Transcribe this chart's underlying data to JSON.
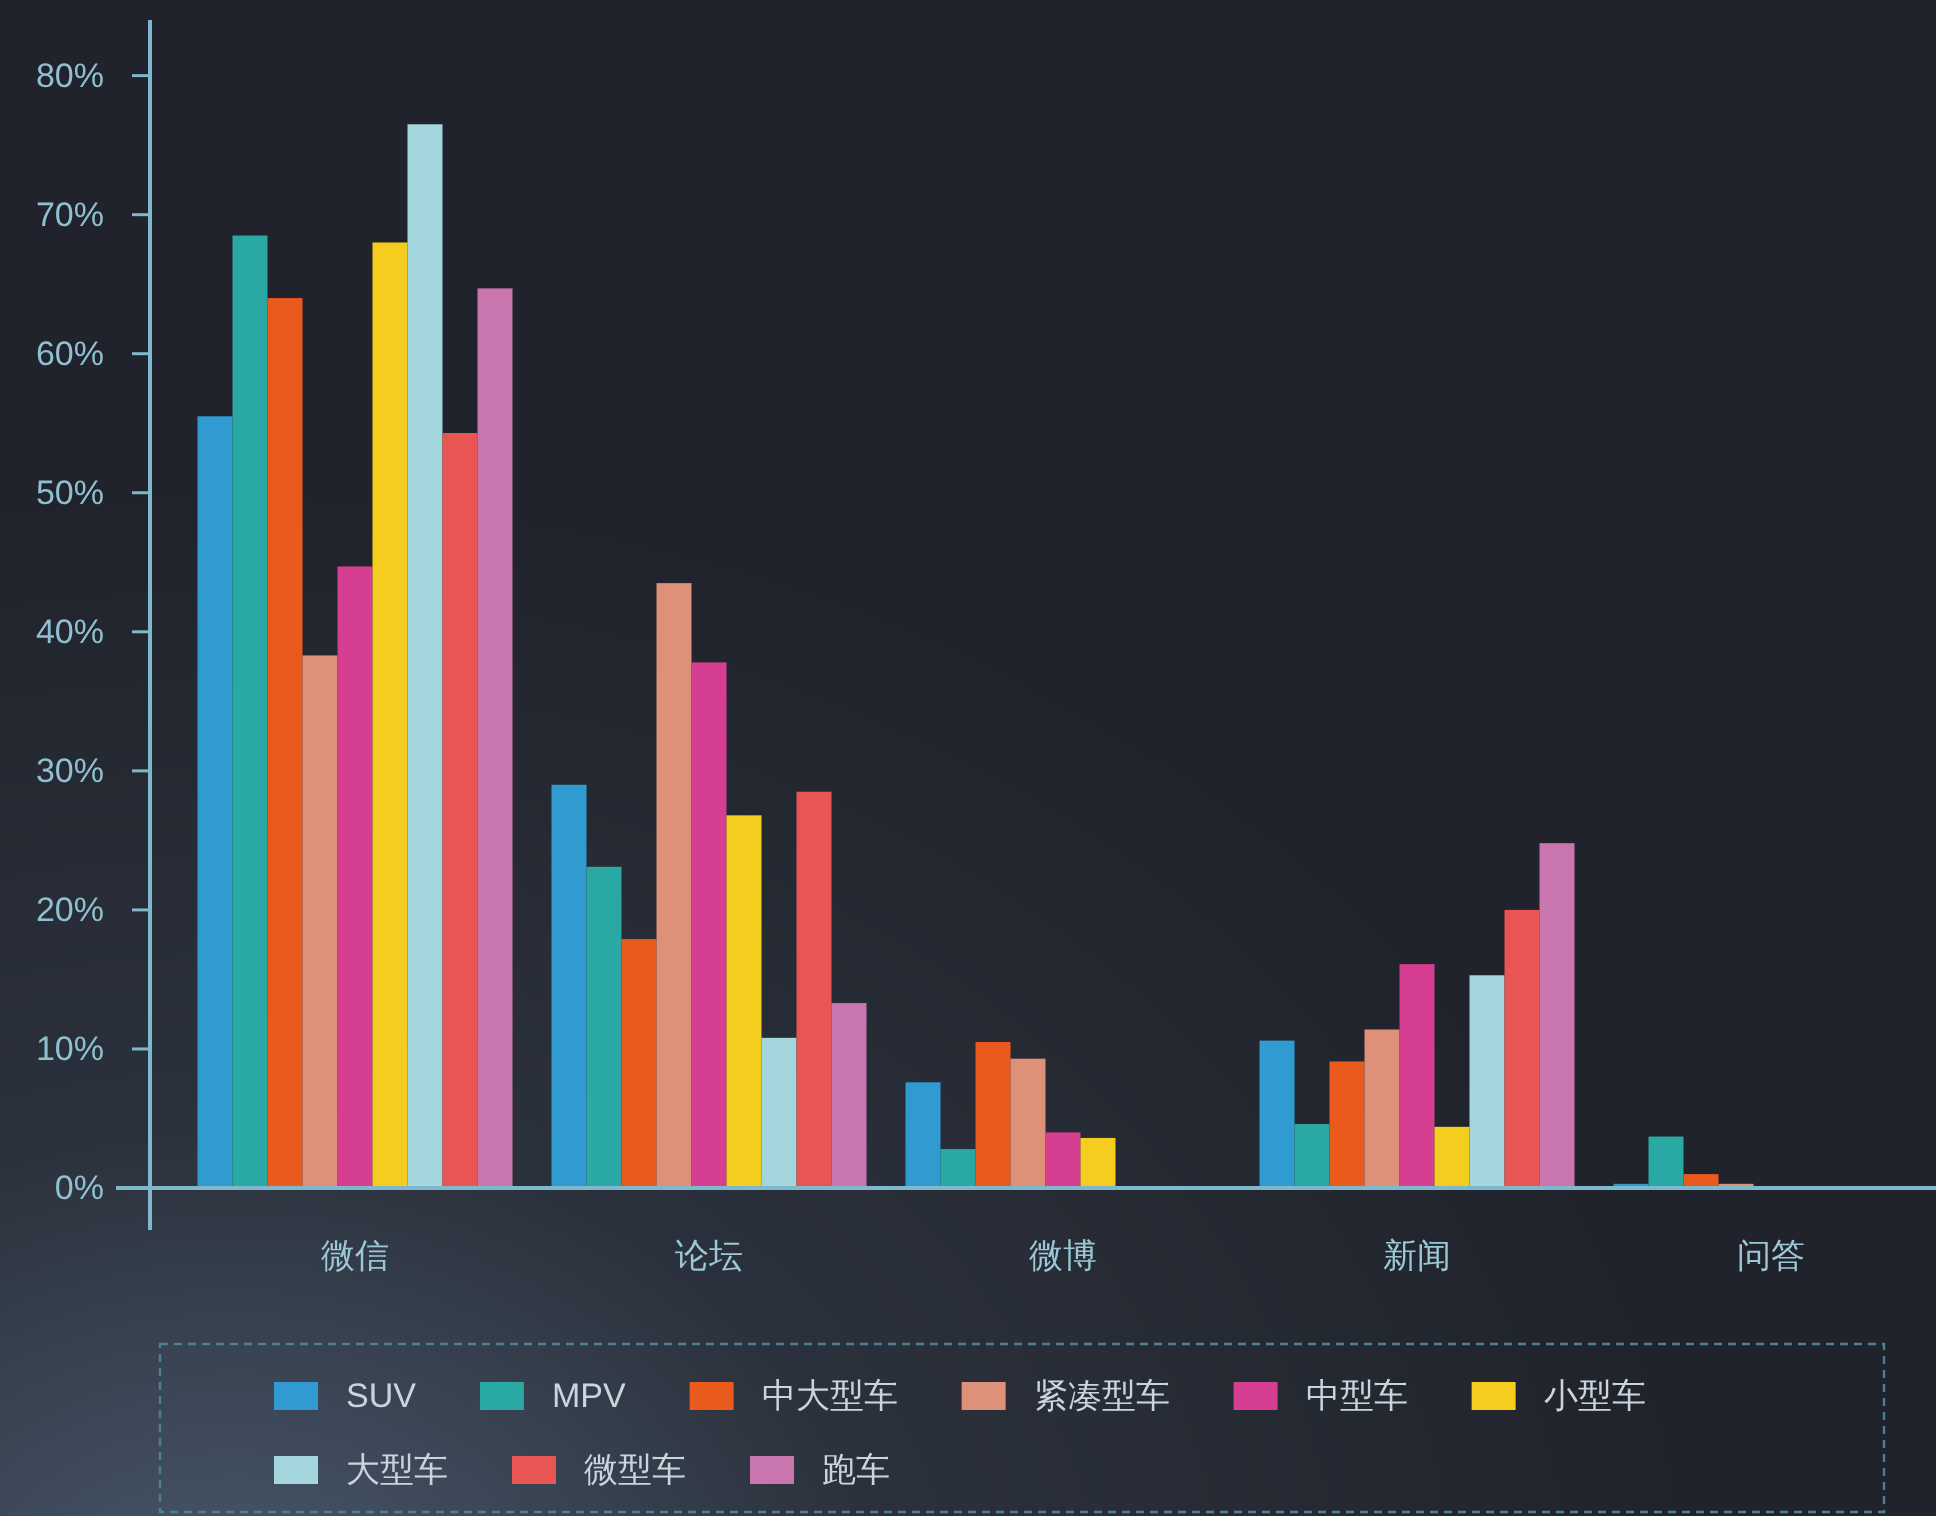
{
  "chart_data": {
    "type": "bar",
    "categories": [
      "微信",
      "论坛",
      "微博",
      "新闻",
      "问答"
    ],
    "series": [
      {
        "name": "SUV",
        "color": "#2f9bd1",
        "values": [
          55.5,
          29.0,
          7.6,
          10.6,
          0.3
        ]
      },
      {
        "name": "MPV",
        "color": "#2aa8a3",
        "values": [
          68.5,
          23.1,
          2.8,
          4.6,
          3.7
        ]
      },
      {
        "name": "中大型车",
        "color": "#ea5a1c",
        "values": [
          64.0,
          17.9,
          10.5,
          9.1,
          1.0
        ]
      },
      {
        "name": "紧凑型车",
        "color": "#de9078",
        "values": [
          38.3,
          43.5,
          9.3,
          11.4,
          0.3
        ]
      },
      {
        "name": "中型车",
        "color": "#d63e92",
        "values": [
          44.7,
          37.8,
          4.0,
          16.1,
          null
        ]
      },
      {
        "name": "小型车",
        "color": "#f5cd1f",
        "values": [
          68.0,
          26.8,
          3.6,
          4.4,
          null
        ]
      },
      {
        "name": "大型车",
        "color": "#a4d7dd",
        "values": [
          76.5,
          10.8,
          null,
          15.3,
          null
        ]
      },
      {
        "name": "微型车",
        "color": "#e95553",
        "values": [
          54.3,
          28.5,
          null,
          20.0,
          null
        ]
      },
      {
        "name": "跑车",
        "color": "#c876ad",
        "values": [
          64.7,
          13.3,
          null,
          24.8,
          null
        ]
      }
    ],
    "ylim": [
      0,
      84
    ],
    "yticks": [
      {
        "value": 0,
        "label": "0%"
      },
      {
        "value": 10,
        "label": "10%"
      },
      {
        "value": 20,
        "label": "20%"
      },
      {
        "value": 30,
        "label": "30%"
      },
      {
        "value": 40,
        "label": "40%"
      },
      {
        "value": 50,
        "label": "50%"
      },
      {
        "value": 60,
        "label": "60%"
      },
      {
        "value": 70,
        "label": "70%"
      },
      {
        "value": 80,
        "label": "80%"
      }
    ],
    "legend": "bottom"
  }
}
